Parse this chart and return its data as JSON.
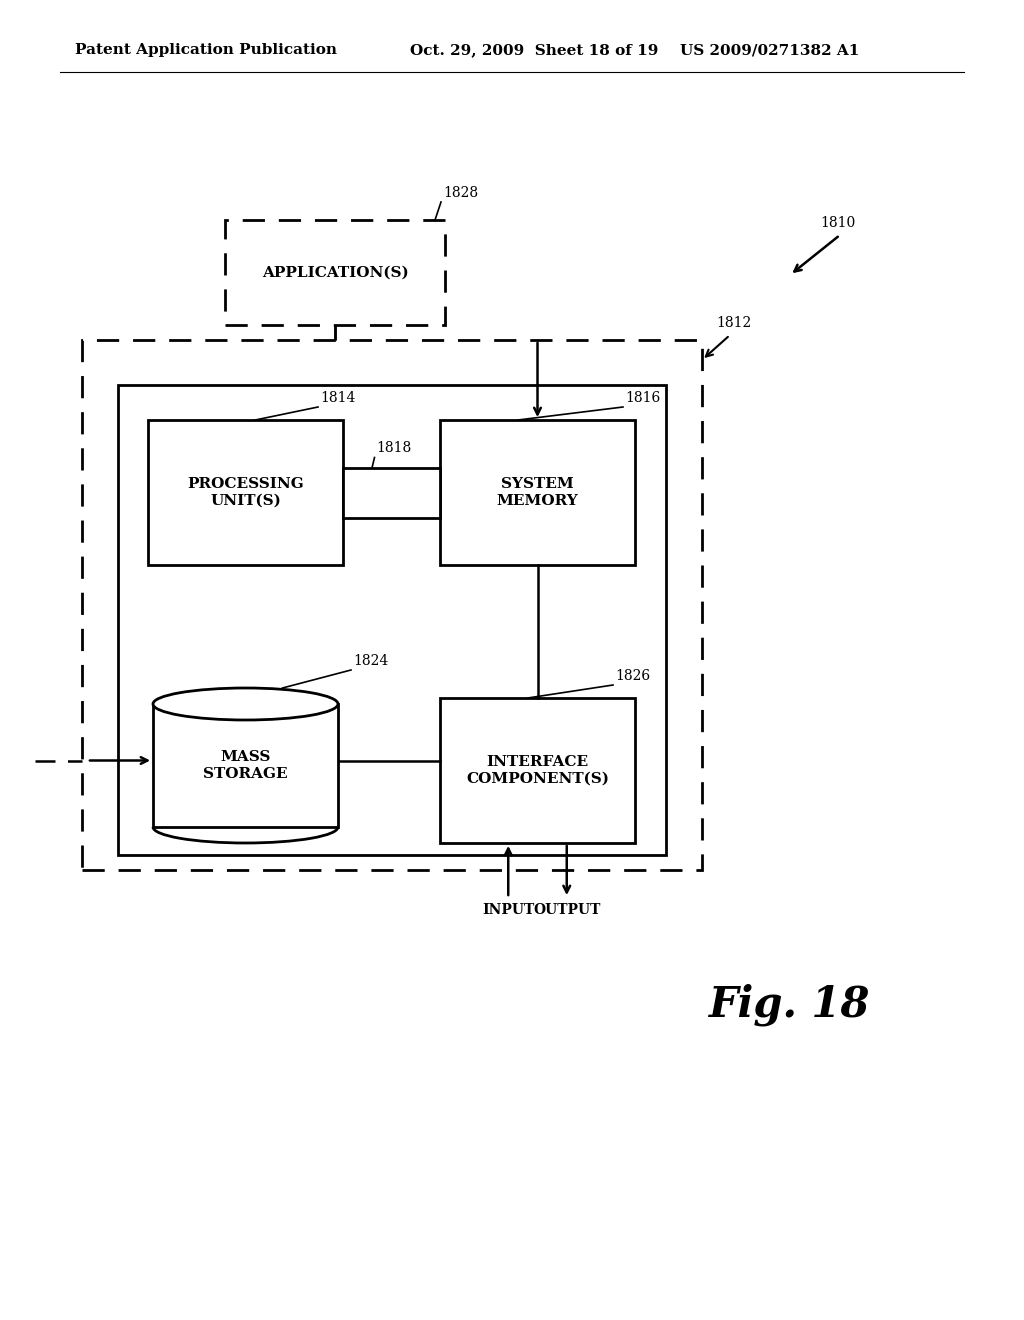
{
  "bg_color": "#ffffff",
  "header_text": "Patent Application Publication",
  "header_date": "Oct. 29, 2009  Sheet 18 of 19",
  "header_patent": "US 2009/0271382 A1",
  "fig_label": "Fig. 18",
  "labels": {
    "1828": "1828",
    "1810": "1810",
    "1812": "1812",
    "1814": "1814",
    "1816": "1816",
    "1818": "1818",
    "1824": "1824",
    "1826": "1826",
    "app": "APPLICATION(S)",
    "proc": "PROCESSING\nUNIT(S)",
    "sysmem": "SYSTEM\nMEMORY",
    "mass": "MASS\nSTORAGE",
    "iface": "INTERFACE\nCOMPONENT(S)",
    "input": "INPUT",
    "output": "OUTPUT"
  }
}
